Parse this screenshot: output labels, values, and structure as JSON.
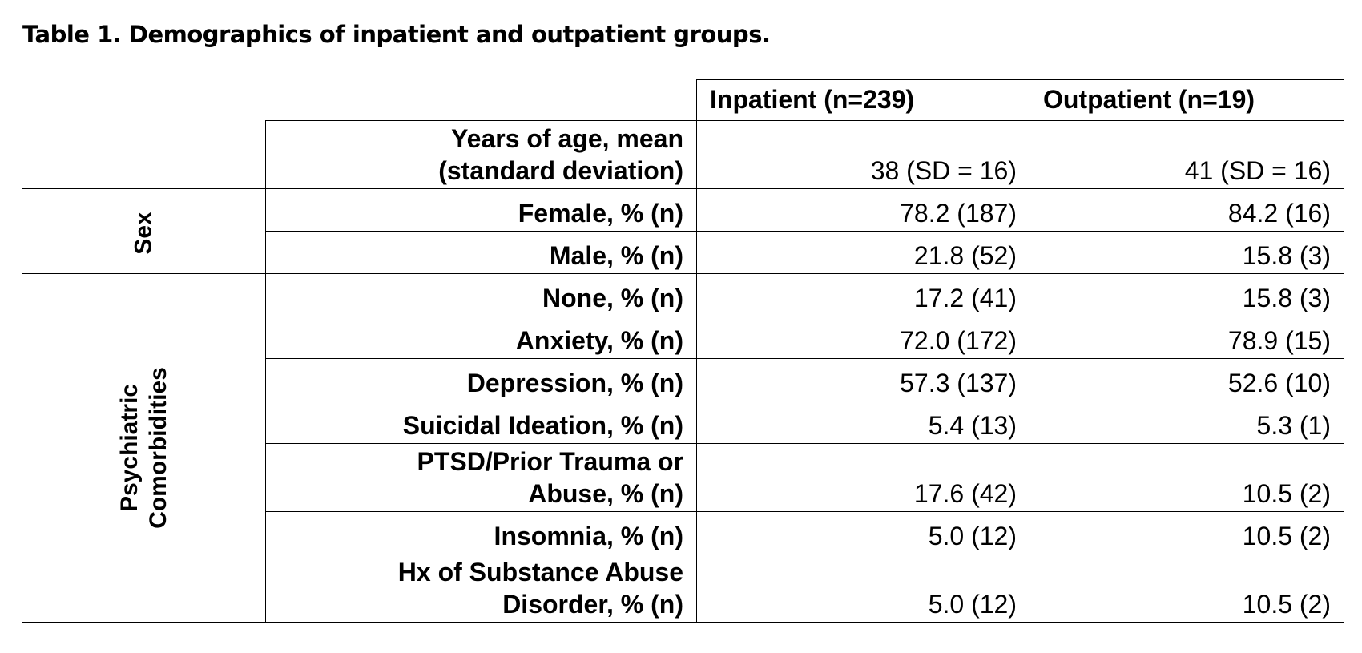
{
  "title": "Table 1. Demographics of inpatient and outpatient groups.",
  "columns": [
    "Inpatient (n=239)",
    "Outpatient (n=19)"
  ],
  "age_row": {
    "label_line1": "Years of age, mean",
    "label_line2": "(standard deviation)",
    "inpatient": "38 (SD = 16)",
    "outpatient": "41 (SD = 16)"
  },
  "groups": {
    "sex": "Sex",
    "psych_line1": "Psychiatric",
    "psych_line2": "Comorbidities"
  },
  "rows": [
    {
      "label": "Female, % (n)",
      "inpatient": "78.2 (187)",
      "outpatient": "84.2 (16)"
    },
    {
      "label": "Male, % (n)",
      "inpatient": "21.8 (52)",
      "outpatient": "15.8 (3)"
    },
    {
      "label": "None, % (n)",
      "inpatient": "17.2 (41)",
      "outpatient": "15.8 (3)"
    },
    {
      "label": "Anxiety, % (n)",
      "inpatient": "72.0 (172)",
      "outpatient": "78.9 (15)"
    },
    {
      "label": "Depression, % (n)",
      "inpatient": "57.3 (137)",
      "outpatient": "52.6 (10)"
    },
    {
      "label": "Suicidal Ideation, % (n)",
      "inpatient": "5.4 (13)",
      "outpatient": "5.3 (1)"
    },
    {
      "label_line1": "PTSD/Prior Trauma or",
      "label_line2": "Abuse, % (n)",
      "inpatient": "17.6 (42)",
      "outpatient": "10.5 (2)"
    },
    {
      "label": "Insomnia, % (n)",
      "inpatient": "5.0 (12)",
      "outpatient": "10.5 (2)"
    },
    {
      "label_line1": "Hx of Substance Abuse",
      "label_line2": "Disorder, % (n)",
      "inpatient": "5.0 (12)",
      "outpatient": "10.5 (2)"
    }
  ]
}
